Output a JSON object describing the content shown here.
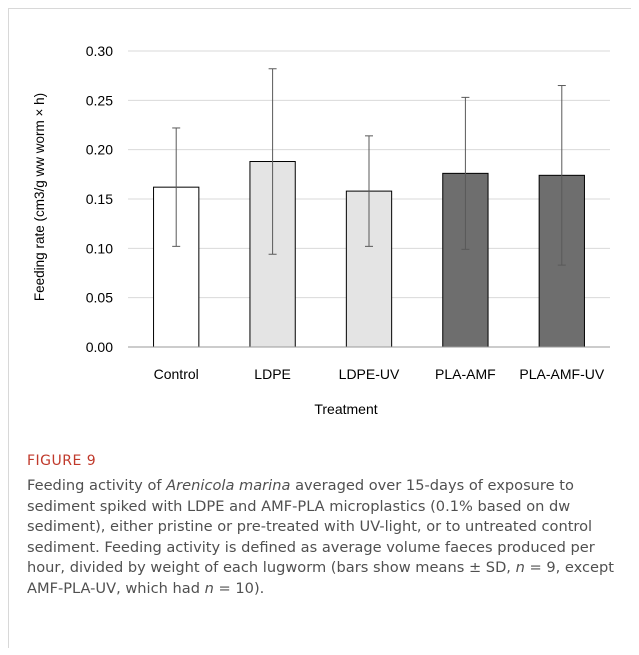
{
  "chart_data": {
    "type": "bar",
    "title": "",
    "xlabel": "Treatment",
    "ylabel": "Feeding rate (cm3/g ww worm × h)",
    "ylim": [
      0,
      0.3
    ],
    "yticks": [
      "0.00",
      "0.05",
      "0.10",
      "0.15",
      "0.20",
      "0.25",
      "0.30"
    ],
    "grid": true,
    "categories": [
      "Control",
      "LDPE",
      "LDPE-UV",
      "PLA-AMF",
      "PLA-AMF-UV"
    ],
    "values": [
      0.162,
      0.188,
      0.158,
      0.176,
      0.174
    ],
    "sd": [
      0.06,
      0.094,
      0.056,
      0.077,
      0.091
    ],
    "bar_colors": [
      "#ffffff",
      "#e4e4e4",
      "#e4e4e4",
      "#6e6e6e",
      "#6e6e6e"
    ]
  },
  "figure": {
    "label": "FIGURE 9",
    "caption": {
      "p1": "Feeding activity of ",
      "species": "Arenicola marina",
      "p2": " averaged over 15-days of exposure to sediment spiked with LDPE and AMF-PLA microplastics (0.1% based on dw sediment), either pristine or pre-treated with UV-light, or to untreated control sediment. Feeding activity is defined as average volume faeces produced per hour, divided by weight of each lugworm (bars show means ± SD, ",
      "n1": "n",
      "p3": " = 9, except AMF-PLA-UV, which had ",
      "n2": "n",
      "p4": " = 10)."
    }
  }
}
